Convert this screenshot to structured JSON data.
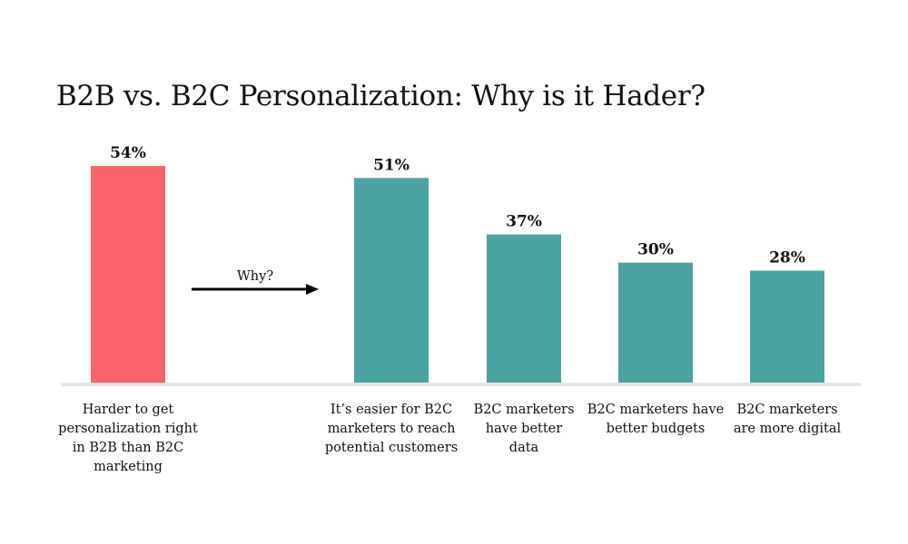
{
  "chart_data": {
    "type": "bar",
    "title": "B2B vs. B2C Personalization: Why is it Hader?",
    "xlabel": "",
    "ylabel": "",
    "ylim": [
      0,
      60
    ],
    "grid": false,
    "legend": "none",
    "categories": [
      "Harder to get personalization right in B2B than B2C marketing",
      "It’s easier for B2C marketers to reach potential customers",
      "B2C marketers have better data",
      "B2C marketers have better budgets",
      "B2C marketers are more digital"
    ],
    "category_lines": [
      [
        "Harder to get",
        "personalization right",
        "in B2B than B2C",
        "marketing"
      ],
      [
        "It’s easier for B2C",
        "marketers to reach",
        "potential customers"
      ],
      [
        "B2C marketers",
        "have better",
        "data"
      ],
      [
        "B2C marketers have",
        "better budgets"
      ],
      [
        "B2C marketers",
        "are more digital"
      ]
    ],
    "values": [
      54,
      51,
      37,
      30,
      28
    ],
    "value_labels": [
      "54%",
      "51%",
      "37%",
      "30%",
      "28%"
    ],
    "colors": [
      "#F86469",
      "#4AA3A2",
      "#4AA3A2",
      "#4AA3A2",
      "#4AA3A2"
    ],
    "annotation": {
      "text": "Why?",
      "arrow": "right"
    },
    "baseline_color": "#E6E6E6",
    "arrow_color": "#000000"
  }
}
